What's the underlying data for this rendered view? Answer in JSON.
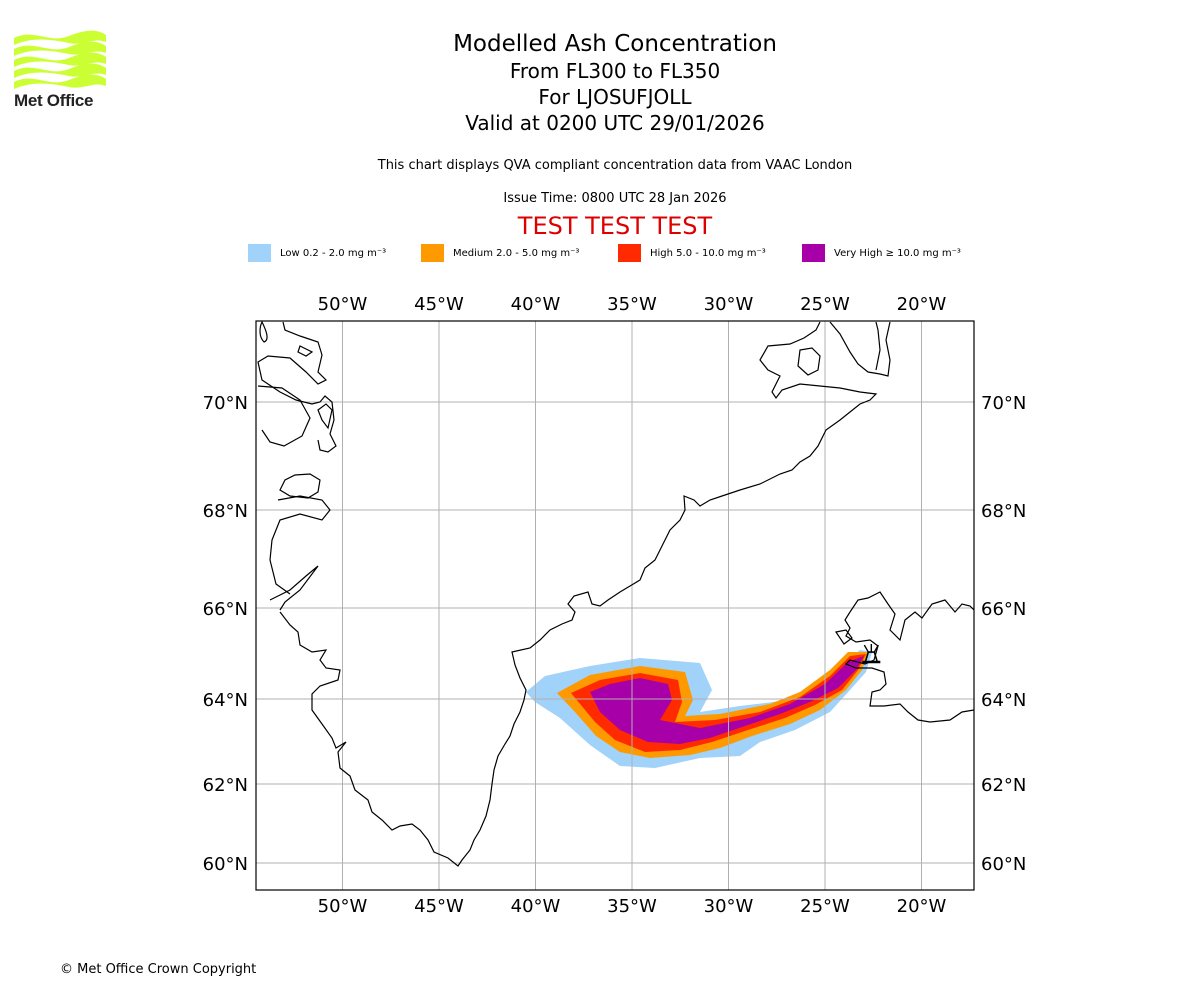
{
  "logo": {
    "text": "Met Office",
    "icon": "met-office-waves-logo",
    "color": "#ccff33"
  },
  "header": {
    "title": "Modelled Ash Concentration",
    "flight_levels": "From FL300 to FL350",
    "volcano_line": "For LJOSUFJOLL",
    "valid_time": "Valid at 0200 UTC 29/01/2026",
    "description": "This chart displays QVA compliant concentration data from VAAC London",
    "issue_time": "Issue Time: 0800 UTC 28 Jan 2026",
    "test_banner": "TEST TEST TEST"
  },
  "legend": [
    {
      "label": "Low 0.2 - 2.0 mg m⁻³",
      "color": "#a0d2fa"
    },
    {
      "label": "Medium 2.0 - 5.0 mg m⁻³",
      "color": "#ff9900"
    },
    {
      "label": "High 5.0 - 10.0 mg m⁻³",
      "color": "#ff2a00"
    },
    {
      "label": "Very High ≥ 10.0 mg m⁻³",
      "color": "#a800a8"
    }
  ],
  "footer": {
    "copyright": "© Met Office Crown Copyright"
  },
  "chart_data": {
    "type": "map",
    "title": "Modelled Ash Concentration",
    "extent": {
      "lon": [
        -54.5,
        -17.3
      ],
      "lat": [
        59.5,
        71.6
      ]
    },
    "grid": true,
    "lon_ticks": [
      -50,
      -45,
      -40,
      -35,
      -30,
      -25,
      -20
    ],
    "lon_tick_labels": [
      "50°W",
      "45°W",
      "40°W",
      "35°W",
      "30°W",
      "25°W",
      "20°W"
    ],
    "lat_ticks": [
      60,
      62,
      64,
      66,
      68,
      70
    ],
    "lat_tick_labels": [
      "60°N",
      "62°N",
      "64°N",
      "66°N",
      "68°N",
      "70°N"
    ],
    "volcano": {
      "name": "LJOSUFJOLL",
      "lon": -22.6,
      "lat": 64.9,
      "symbol": "volcano-icon"
    },
    "ash_levels": [
      "Low",
      "Medium",
      "High",
      "Very High"
    ],
    "ash_plume_approx_extent": {
      "Low": {
        "lon": [
          -40.4,
          -22.4
        ],
        "lat": [
          62.4,
          65.0
        ]
      },
      "Medium": {
        "lon": [
          -39.5,
          -22.5
        ],
        "lat": [
          62.6,
          64.9
        ]
      },
      "High": {
        "lon": [
          -38.2,
          -22.6
        ],
        "lat": [
          62.8,
          64.9
        ]
      },
      "Very High": {
        "lon": [
          -37.0,
          -22.7
        ],
        "lat": [
          62.9,
          64.9
        ]
      }
    }
  }
}
